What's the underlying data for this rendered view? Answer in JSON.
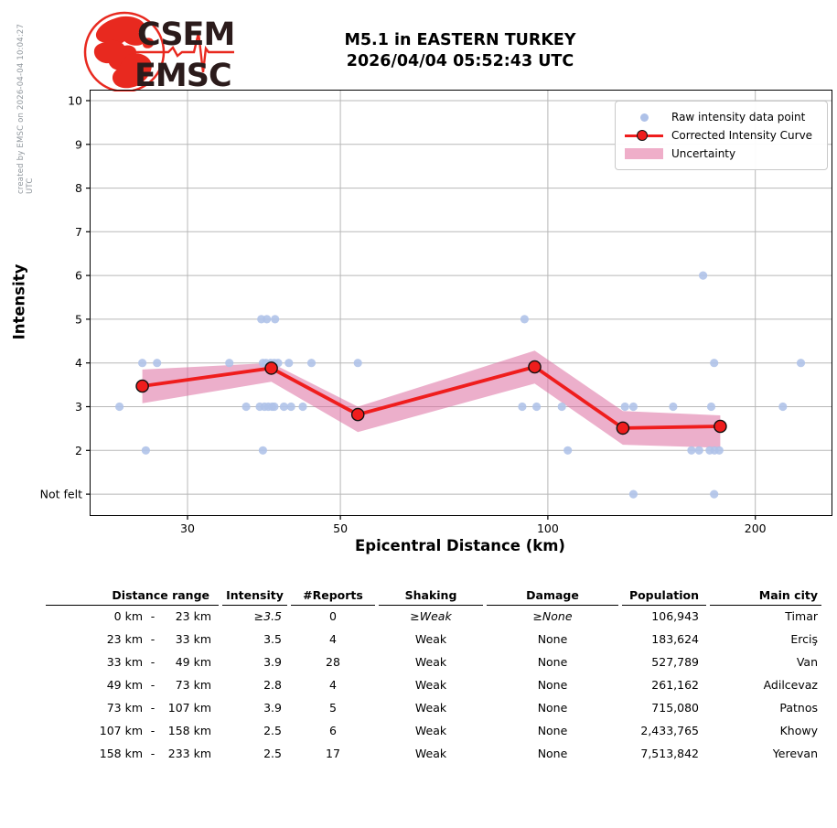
{
  "page": {
    "created_by": "created by EMSC on 2026-04-04 10:04:27 UTC"
  },
  "logo": {
    "line1": "CSEM",
    "line2": "EMSC"
  },
  "title": {
    "line1": "M5.1 in EASTERN TURKEY",
    "line2": "2026/04/04 05:52:43 UTC"
  },
  "legend": {
    "raw": "Raw intensity data point",
    "curve": "Corrected Intensity Curve",
    "band": "Uncertainty"
  },
  "chart_data": {
    "type": "line",
    "x_scale": "log",
    "xlabel": "Epicentral Distance (km)",
    "ylabel": "Intensity",
    "x_domain": [
      21.7,
      258
    ],
    "y_domain": [
      0.52,
      10.23
    ],
    "grid": true,
    "legend_position": "upper right",
    "x_ticks": [
      {
        "v": 30,
        "label": "30"
      },
      {
        "v": 50,
        "label": "50"
      },
      {
        "v": 100,
        "label": "100"
      },
      {
        "v": 200,
        "label": "200"
      }
    ],
    "y_ticks": [
      {
        "v": 1,
        "label": "Not felt"
      },
      {
        "v": 2,
        "label": "2"
      },
      {
        "v": 3,
        "label": "3"
      },
      {
        "v": 4,
        "label": "4"
      },
      {
        "v": 5,
        "label": "5"
      },
      {
        "v": 6,
        "label": "6"
      },
      {
        "v": 7,
        "label": "7"
      },
      {
        "v": 8,
        "label": "8"
      },
      {
        "v": 9,
        "label": "9"
      },
      {
        "v": 10,
        "label": "10"
      }
    ],
    "corrected_curve": [
      {
        "d": 25.8,
        "i": 3.47,
        "hi": 3.85,
        "lo": 3.08
      },
      {
        "d": 39.7,
        "i": 3.88,
        "hi": 4.0,
        "lo": 3.57
      },
      {
        "d": 53.0,
        "i": 2.82,
        "hi": 3.0,
        "lo": 2.42
      },
      {
        "d": 95.7,
        "i": 3.91,
        "hi": 4.28,
        "lo": 3.53
      },
      {
        "d": 128.5,
        "i": 2.51,
        "hi": 2.9,
        "lo": 2.13
      },
      {
        "d": 177.9,
        "i": 2.55,
        "hi": 2.8,
        "lo": 2.06
      }
    ],
    "raw_points": [
      [
        168,
        6
      ],
      [
        38.4,
        5
      ],
      [
        39.1,
        5
      ],
      [
        40.2,
        5
      ],
      [
        92.5,
        5
      ],
      [
        25.8,
        4
      ],
      [
        27.1,
        4
      ],
      [
        34.5,
        4
      ],
      [
        38.6,
        4
      ],
      [
        39.0,
        4
      ],
      [
        39.6,
        4
      ],
      [
        40.1,
        4
      ],
      [
        40.6,
        4
      ],
      [
        42.1,
        4
      ],
      [
        45.4,
        4
      ],
      [
        53.0,
        4
      ],
      [
        174.3,
        4
      ],
      [
        232.9,
        4
      ],
      [
        23.9,
        3
      ],
      [
        36.5,
        3
      ],
      [
        38.2,
        3
      ],
      [
        38.8,
        3
      ],
      [
        39.3,
        3
      ],
      [
        39.8,
        3
      ],
      [
        40.1,
        3
      ],
      [
        41.4,
        3
      ],
      [
        42.4,
        3
      ],
      [
        44.1,
        3
      ],
      [
        91.8,
        3
      ],
      [
        96.3,
        3
      ],
      [
        104.8,
        3
      ],
      [
        129.4,
        3
      ],
      [
        133.1,
        3
      ],
      [
        152.0,
        3
      ],
      [
        172.6,
        3
      ],
      [
        219.3,
        3
      ],
      [
        26.1,
        2
      ],
      [
        38.6,
        2
      ],
      [
        106.9,
        2
      ],
      [
        161.6,
        2
      ],
      [
        165.8,
        2
      ],
      [
        171.7,
        2
      ],
      [
        174.5,
        2
      ],
      [
        177.3,
        2
      ],
      [
        133.1,
        1
      ],
      [
        174.3,
        1
      ]
    ],
    "colors": {
      "raw_point": "#aec1e8",
      "curve": "#ef1d1d",
      "marker_edge": "#111111",
      "band": "#dd6ea0",
      "grid": "#b8b8b8",
      "axis": "#000000",
      "logo_red": "#e8291f",
      "logo_text": "#2b1b1b"
    }
  },
  "table": {
    "range_separator": "-",
    "headers": {
      "range": "Distance range",
      "intensity": "Intensity",
      "reports": "#Reports",
      "shaking": "Shaking",
      "damage": "Damage",
      "population": "Population",
      "city": "Main city"
    },
    "rows": [
      {
        "from": "0 km",
        "to": "23 km",
        "intensity": "≥3.5",
        "reports": "0",
        "shaking": "≥Weak",
        "damage": "≥None",
        "population": "106,943",
        "city": "Timar",
        "estimated": true
      },
      {
        "from": "23 km",
        "to": "33 km",
        "intensity": "3.5",
        "reports": "4",
        "shaking": "Weak",
        "damage": "None",
        "population": "183,624",
        "city": "Erciş",
        "estimated": false
      },
      {
        "from": "33 km",
        "to": "49 km",
        "intensity": "3.9",
        "reports": "28",
        "shaking": "Weak",
        "damage": "None",
        "population": "527,789",
        "city": "Van",
        "estimated": false
      },
      {
        "from": "49 km",
        "to": "73 km",
        "intensity": "2.8",
        "reports": "4",
        "shaking": "Weak",
        "damage": "None",
        "population": "261,162",
        "city": "Adilcevaz",
        "estimated": false
      },
      {
        "from": "73 km",
        "to": "107 km",
        "intensity": "3.9",
        "reports": "5",
        "shaking": "Weak",
        "damage": "None",
        "population": "715,080",
        "city": "Patnos",
        "estimated": false
      },
      {
        "from": "107 km",
        "to": "158 km",
        "intensity": "2.5",
        "reports": "6",
        "shaking": "Weak",
        "damage": "None",
        "population": "2,433,765",
        "city": "Khowy",
        "estimated": false
      },
      {
        "from": "158 km",
        "to": "233 km",
        "intensity": "2.5",
        "reports": "17",
        "shaking": "Weak",
        "damage": "None",
        "population": "7,513,842",
        "city": "Yerevan",
        "estimated": false
      }
    ]
  }
}
